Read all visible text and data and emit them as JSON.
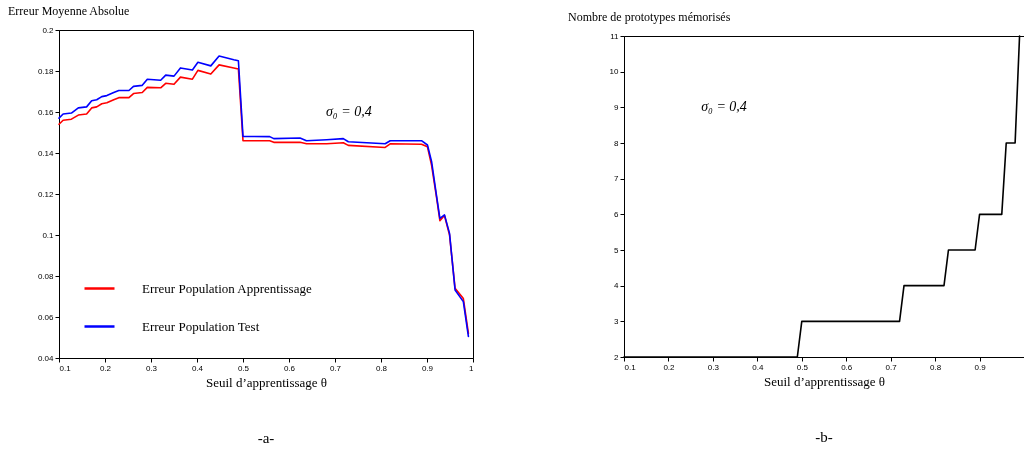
{
  "chart_data": [
    {
      "type": "line",
      "ylabel": "Erreur Moyenne Absolue",
      "xlabel": "Seuil d’apprentissage θ",
      "xlim": [
        0.1,
        1
      ],
      "xticks": [
        0.1,
        0.2,
        0.3,
        0.4,
        0.5,
        0.6,
        0.7,
        0.8,
        0.9,
        1
      ],
      "ylim": [
        0.04,
        0.2
      ],
      "yticks": [
        0.04,
        0.06,
        0.08,
        0.1,
        0.12,
        0.14,
        0.16,
        0.18,
        0.2
      ],
      "grid": false,
      "legend": "bottom left",
      "line_style": "solid",
      "marker": "none",
      "annotations": [
        "σ₀ = 0,4",
        "-a-"
      ],
      "series": [
        {
          "name": "Erreur Population Apprentissage",
          "color": "#ff0000",
          "x": [
            0.1,
            0.109,
            0.127,
            0.142,
            0.16,
            0.171,
            0.182,
            0.193,
            0.204,
            0.219,
            0.23,
            0.252,
            0.262,
            0.281,
            0.292,
            0.321,
            0.332,
            0.35,
            0.364,
            0.39,
            0.402,
            0.43,
            0.448,
            0.48,
            0.49,
            0.5,
            0.558,
            0.567,
            0.624,
            0.638,
            0.682,
            0.718,
            0.729,
            0.809,
            0.82,
            0.888,
            0.901,
            0.91,
            0.921,
            0.928,
            0.938,
            0.949,
            0.961,
            0.979,
            0.99
          ],
          "values": [
            0.154,
            0.156,
            0.1565,
            0.1585,
            0.159,
            0.162,
            0.1625,
            0.164,
            0.1645,
            0.166,
            0.167,
            0.167,
            0.169,
            0.1695,
            0.172,
            0.1718,
            0.174,
            0.1735,
            0.177,
            0.176,
            0.1803,
            0.1785,
            0.183,
            0.1815,
            0.181,
            0.146,
            0.146,
            0.1452,
            0.1452,
            0.1445,
            0.1445,
            0.145,
            0.1437,
            0.1427,
            0.1445,
            0.1443,
            0.143,
            0.134,
            0.118,
            0.107,
            0.1095,
            0.1,
            0.074,
            0.069,
            0.052
          ]
        },
        {
          "name": "Erreur Population Test",
          "color": "#0000ff",
          "x": [
            0.1,
            0.109,
            0.127,
            0.142,
            0.16,
            0.171,
            0.182,
            0.193,
            0.204,
            0.219,
            0.23,
            0.252,
            0.262,
            0.281,
            0.292,
            0.321,
            0.332,
            0.35,
            0.364,
            0.39,
            0.402,
            0.43,
            0.448,
            0.48,
            0.49,
            0.5,
            0.558,
            0.567,
            0.624,
            0.638,
            0.682,
            0.718,
            0.729,
            0.809,
            0.82,
            0.888,
            0.901,
            0.91,
            0.921,
            0.928,
            0.938,
            0.949,
            0.961,
            0.979,
            0.99
          ],
          "values": [
            0.157,
            0.159,
            0.1595,
            0.162,
            0.1625,
            0.1655,
            0.166,
            0.1675,
            0.168,
            0.1695,
            0.1705,
            0.1705,
            0.1725,
            0.173,
            0.176,
            0.1755,
            0.178,
            0.1775,
            0.1815,
            0.1805,
            0.1843,
            0.1825,
            0.1873,
            0.1855,
            0.185,
            0.1481,
            0.148,
            0.147,
            0.1473,
            0.146,
            0.1465,
            0.147,
            0.1455,
            0.1445,
            0.146,
            0.146,
            0.1439,
            0.1358,
            0.1187,
            0.1081,
            0.1098,
            0.1008,
            0.0732,
            0.0675,
            0.0505
          ]
        }
      ]
    },
    {
      "type": "line",
      "ylabel": "Nombre de prototypes mémorisés",
      "xlabel": "Seuil d’apprentissage θ",
      "xlim": [
        0.1,
        1
      ],
      "xticks": [
        0.1,
        0.2,
        0.3,
        0.4,
        0.5,
        0.6,
        0.7,
        0.8,
        0.9
      ],
      "ylim": [
        2,
        11
      ],
      "yticks": [
        2,
        3,
        4,
        5,
        6,
        7,
        8,
        9,
        10,
        11
      ],
      "grid": false,
      "legend": false,
      "line_style": "solid",
      "marker": "none",
      "annotations": [
        "σ₀ = 0,4",
        "-b-"
      ],
      "series": [
        {
          "color": "#000000",
          "x": [
            0.1,
            0.49,
            0.5,
            0.72,
            0.73,
            0.82,
            0.83,
            0.89,
            0.9,
            0.95,
            0.96,
            0.98,
            0.99
          ],
          "values": [
            2,
            2,
            3,
            3,
            4,
            4,
            5,
            5,
            6,
            6,
            8,
            8,
            11
          ]
        }
      ]
    }
  ]
}
